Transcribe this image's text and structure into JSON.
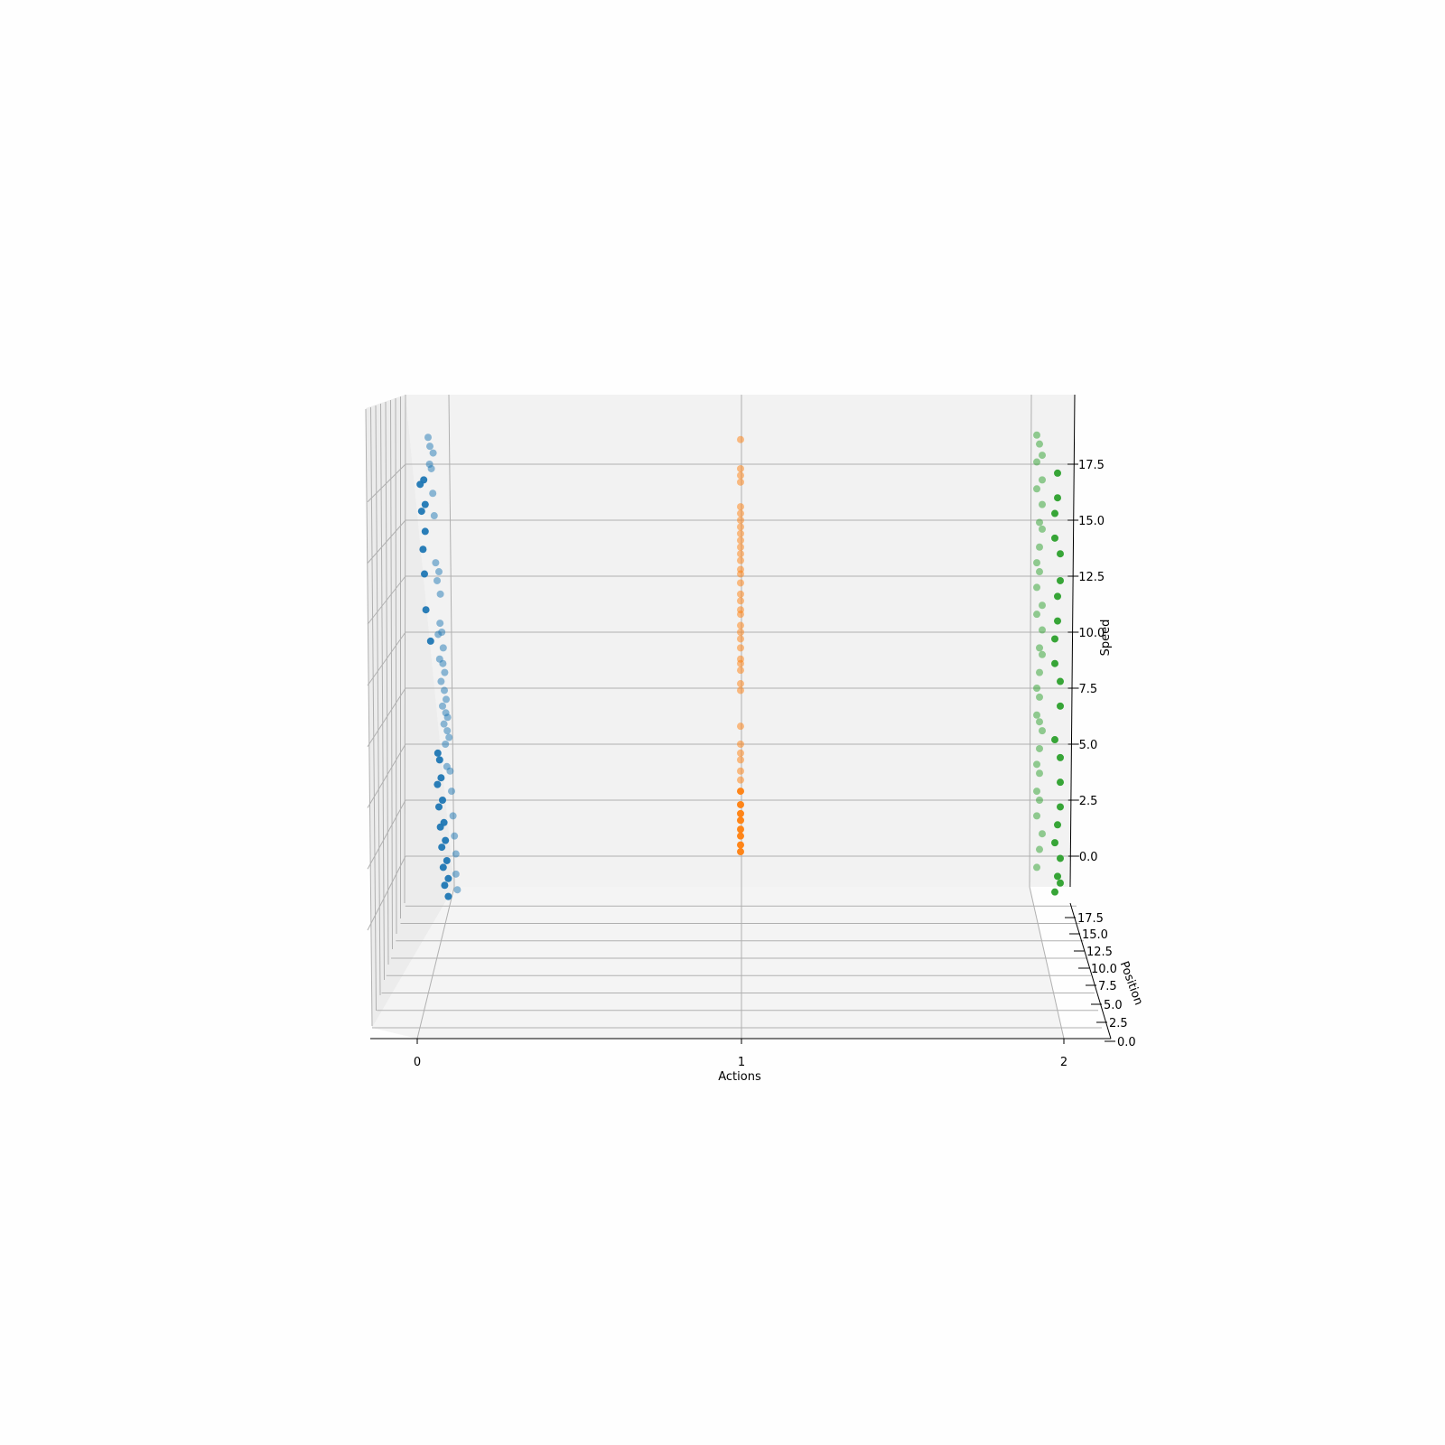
{
  "chart_data": {
    "type": "scatter3d",
    "title": "",
    "xlabel": "Actions",
    "ylabel": "Position",
    "zlabel": "Speed",
    "x_ticks": [
      "0",
      "1",
      "2"
    ],
    "position_ticks": [
      "0.0",
      "2.5",
      "5.0",
      "7.5",
      "10.0",
      "12.5",
      "15.0",
      "17.5"
    ],
    "speed_ticks": [
      "0.0",
      "2.5",
      "5.0",
      "7.5",
      "10.0",
      "12.5",
      "15.0",
      "17.5"
    ],
    "grid": true,
    "series": [
      {
        "action": 0,
        "color": "#1f77b4",
        "speeds": [
          18.7,
          18.3,
          18.0,
          17.5,
          17.3,
          16.8,
          16.6,
          16.2,
          15.7,
          15.4,
          15.2,
          14.5,
          13.7,
          13.1,
          12.7,
          12.6,
          12.3,
          11.7,
          11.0,
          10.4,
          10.0,
          9.9,
          9.6,
          9.3,
          8.8,
          8.6,
          8.2,
          7.8,
          7.4,
          7.0,
          6.7,
          6.4,
          6.2,
          5.9,
          5.6,
          5.3,
          5.0,
          4.6,
          4.3,
          4.0,
          3.8,
          3.5,
          3.2,
          2.9,
          2.5,
          2.2,
          1.8,
          1.5,
          1.3,
          0.9,
          0.7,
          0.4,
          0.1,
          -0.2,
          -0.5,
          -0.8,
          -1.0,
          -1.3,
          -1.5,
          -1.8
        ],
        "positions": [
          19,
          19,
          18,
          18,
          18,
          17,
          17,
          17,
          16,
          16,
          16,
          16,
          15,
          15,
          14,
          14,
          14,
          13,
          13,
          12,
          12,
          12,
          11,
          11,
          11,
          10,
          10,
          10,
          9,
          9,
          9,
          8,
          8,
          8,
          7,
          7,
          7,
          6,
          6,
          6,
          5,
          5,
          5,
          4,
          4,
          4,
          3,
          3,
          3,
          2,
          2,
          2,
          1,
          1,
          1,
          1,
          0,
          0,
          0,
          0
        ],
        "near": [
          false,
          false,
          false,
          false,
          false,
          true,
          true,
          false,
          true,
          true,
          false,
          true,
          true,
          false,
          false,
          true,
          false,
          false,
          true,
          false,
          false,
          false,
          true,
          false,
          false,
          false,
          false,
          false,
          false,
          false,
          false,
          false,
          false,
          false,
          false,
          false,
          false,
          true,
          true,
          false,
          false,
          true,
          true,
          false,
          true,
          true,
          false,
          true,
          true,
          false,
          true,
          true,
          false,
          true,
          true,
          false,
          true,
          true,
          false,
          true
        ]
      },
      {
        "action": 1,
        "color": "#ff7f0e",
        "speeds": [
          18.6,
          17.3,
          17.0,
          16.7,
          15.6,
          15.3,
          15.0,
          14.7,
          14.4,
          14.1,
          13.8,
          13.5,
          13.2,
          12.8,
          12.6,
          12.2,
          11.7,
          11.4,
          11.0,
          10.8,
          10.3,
          10.0,
          9.7,
          9.3,
          8.8,
          8.6,
          8.3,
          7.7,
          7.4,
          5.8,
          5.0,
          4.6,
          4.3,
          3.8,
          3.4,
          2.9,
          2.3,
          1.9,
          1.6,
          1.2,
          0.9,
          0.5,
          0.2
        ],
        "positions": [
          19,
          18,
          18,
          17,
          17,
          16,
          16,
          16,
          15,
          15,
          15,
          14,
          14,
          14,
          13,
          13,
          12,
          12,
          11,
          11,
          11,
          10,
          10,
          9,
          9,
          8,
          8,
          8,
          7,
          7,
          6,
          6,
          5,
          5,
          5,
          4,
          4,
          3,
          3,
          2,
          2,
          1,
          1
        ],
        "near": [
          false,
          false,
          false,
          false,
          false,
          false,
          false,
          false,
          false,
          false,
          false,
          false,
          false,
          false,
          false,
          false,
          false,
          false,
          false,
          false,
          false,
          false,
          false,
          false,
          false,
          false,
          false,
          false,
          false,
          false,
          false,
          false,
          false,
          false,
          false,
          true,
          true,
          true,
          true,
          true,
          true,
          true,
          true
        ]
      },
      {
        "action": 2,
        "color": "#2ca02c",
        "speeds": [
          18.8,
          18.4,
          17.9,
          17.6,
          17.1,
          16.8,
          16.4,
          16.0,
          15.7,
          15.3,
          14.9,
          14.6,
          14.2,
          13.8,
          13.5,
          13.1,
          12.7,
          12.3,
          12.0,
          11.6,
          11.2,
          10.8,
          10.5,
          10.1,
          9.7,
          9.3,
          9.0,
          8.6,
          8.2,
          7.8,
          7.5,
          7.1,
          6.7,
          6.3,
          6.0,
          5.6,
          5.2,
          4.8,
          4.4,
          4.1,
          3.7,
          3.3,
          2.9,
          2.5,
          2.2,
          1.8,
          1.4,
          1.0,
          0.6,
          0.3,
          -0.1,
          -0.5,
          -0.9,
          -1.2,
          -1.6
        ],
        "positions": [
          19,
          19,
          18,
          18,
          17,
          17,
          16,
          16,
          15,
          15,
          14,
          14,
          14,
          13,
          13,
          12,
          12,
          12,
          11,
          11,
          10,
          10,
          10,
          9,
          9,
          8,
          8,
          8,
          7,
          7,
          7,
          6,
          6,
          6,
          5,
          5,
          5,
          4,
          4,
          4,
          3,
          3,
          3,
          2,
          2,
          2,
          2,
          1,
          1,
          1,
          1,
          0,
          0,
          0,
          0
        ],
        "near": [
          false,
          false,
          false,
          false,
          true,
          false,
          false,
          true,
          false,
          true,
          false,
          false,
          true,
          false,
          true,
          false,
          false,
          true,
          false,
          true,
          false,
          false,
          true,
          false,
          true,
          false,
          false,
          true,
          false,
          true,
          false,
          false,
          true,
          false,
          false,
          false,
          true,
          false,
          true,
          false,
          false,
          true,
          false,
          false,
          true,
          false,
          true,
          false,
          true,
          false,
          true,
          false,
          true,
          true,
          true
        ]
      }
    ]
  }
}
